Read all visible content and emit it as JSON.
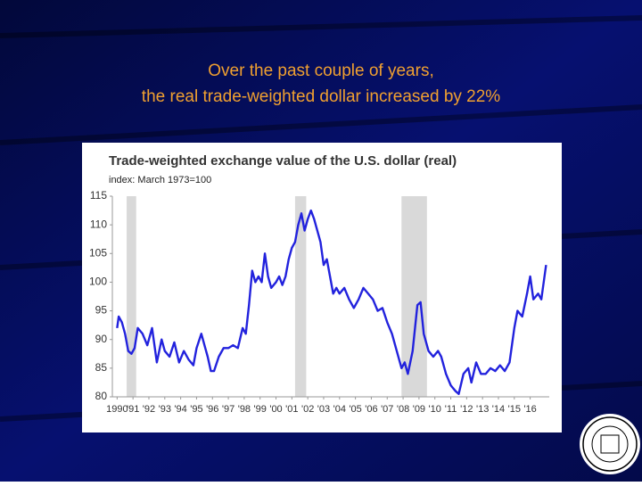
{
  "slide": {
    "title_lines": [
      "Over the past couple of years,",
      "the real trade-weighted dollar increased by 22%"
    ]
  },
  "chart_data": {
    "type": "line",
    "title": "Trade-weighted exchange value of the U.S. dollar (real)",
    "subtitle": "index: March 1973=100",
    "x": [
      1990.0,
      1990.1,
      1990.3,
      1990.5,
      1990.7,
      1990.9,
      1991.1,
      1991.3,
      1991.6,
      1991.9,
      1992.2,
      1992.5,
      1992.8,
      1993.0,
      1993.3,
      1993.6,
      1993.9,
      1994.2,
      1994.5,
      1994.8,
      1995.0,
      1995.3,
      1995.5,
      1995.7,
      1995.9,
      1996.1,
      1996.4,
      1996.7,
      1997.0,
      1997.3,
      1997.6,
      1997.9,
      1998.1,
      1998.3,
      1998.5,
      1998.7,
      1998.9,
      1999.1,
      1999.3,
      1999.5,
      1999.7,
      2000.0,
      2000.2,
      2000.4,
      2000.6,
      2000.8,
      2001.0,
      2001.2,
      2001.4,
      2001.6,
      2001.8,
      2002.0,
      2002.2,
      2002.4,
      2002.6,
      2002.8,
      2003.0,
      2003.2,
      2003.4,
      2003.6,
      2003.8,
      2004.0,
      2004.3,
      2004.6,
      2004.9,
      2005.2,
      2005.5,
      2005.8,
      2006.1,
      2006.4,
      2006.7,
      2007.0,
      2007.3,
      2007.6,
      2007.9,
      2008.1,
      2008.3,
      2008.6,
      2008.9,
      2009.1,
      2009.3,
      2009.6,
      2009.9,
      2010.2,
      2010.4,
      2010.7,
      2011.0,
      2011.3,
      2011.5,
      2011.8,
      2012.1,
      2012.3,
      2012.6,
      2012.9,
      2013.2,
      2013.5,
      2013.8,
      2014.1,
      2014.4,
      2014.7,
      2015.0,
      2015.2,
      2015.5,
      2015.8,
      2016.0,
      2016.2,
      2016.5,
      2016.7,
      2016.9,
      2017.0
    ],
    "series": [
      {
        "color": "#2222dd",
        "values": [
          92,
          94,
          93,
          91,
          88,
          87.5,
          88.5,
          92,
          91,
          89,
          92,
          86,
          90,
          88,
          87,
          89.5,
          86,
          88,
          86.5,
          85.5,
          88.5,
          91,
          89,
          87,
          84.5,
          84.5,
          87,
          88.5,
          88.5,
          89,
          88.5,
          92,
          91,
          96,
          102,
          100,
          101,
          100,
          105,
          101,
          99,
          100,
          101,
          99.5,
          101,
          104,
          106,
          107,
          110,
          112,
          109,
          111,
          112.5,
          111,
          109,
          107,
          103,
          104,
          101,
          98,
          99,
          98,
          99,
          97,
          95.5,
          97,
          99,
          98,
          97,
          95,
          95.5,
          93,
          91,
          88,
          85,
          86,
          84,
          88,
          96,
          96.5,
          91,
          88,
          87,
          88,
          87,
          84,
          82,
          81,
          80.5,
          84,
          85,
          82.5,
          86,
          84,
          84,
          85,
          84.5,
          85.5,
          84.5,
          86,
          92,
          95,
          94,
          98,
          101,
          97,
          98,
          97,
          101,
          103
        ]
      }
    ],
    "shaded_periods": [
      [
        1990.6,
        1991.2
      ],
      [
        2001.2,
        2001.9
      ],
      [
        2007.9,
        2009.5
      ]
    ],
    "shade_color": "#d9d9d9",
    "xlim": [
      1989.7,
      2017.2
    ],
    "xticks": [
      {
        "value": 1990,
        "label": "1990"
      },
      {
        "value": 1991,
        "label": "'91"
      },
      {
        "value": 1992,
        "label": "'92"
      },
      {
        "value": 1993,
        "label": "'93"
      },
      {
        "value": 1994,
        "label": "'94"
      },
      {
        "value": 1995,
        "label": "'95"
      },
      {
        "value": 1996,
        "label": "'96"
      },
      {
        "value": 1997,
        "label": "'97"
      },
      {
        "value": 1998,
        "label": "'98"
      },
      {
        "value": 1999,
        "label": "'99"
      },
      {
        "value": 2000,
        "label": "'00"
      },
      {
        "value": 2001,
        "label": "'01"
      },
      {
        "value": 2002,
        "label": "'02"
      },
      {
        "value": 2003,
        "label": "'03"
      },
      {
        "value": 2004,
        "label": "'04"
      },
      {
        "value": 2005,
        "label": "'05"
      },
      {
        "value": 2006,
        "label": "'06"
      },
      {
        "value": 2007,
        "label": "'07"
      },
      {
        "value": 2008,
        "label": "'08"
      },
      {
        "value": 2009,
        "label": "'09"
      },
      {
        "value": 2010,
        "label": "'10"
      },
      {
        "value": 2011,
        "label": "'11"
      },
      {
        "value": 2012,
        "label": "'12"
      },
      {
        "value": 2013,
        "label": "'13"
      },
      {
        "value": 2014,
        "label": "'14"
      },
      {
        "value": 2015,
        "label": "'15"
      },
      {
        "value": 2016,
        "label": "'16"
      }
    ],
    "ylim": [
      80,
      115
    ],
    "yticks": [
      80,
      85,
      90,
      95,
      100,
      105,
      110,
      115
    ],
    "grid": false
  }
}
